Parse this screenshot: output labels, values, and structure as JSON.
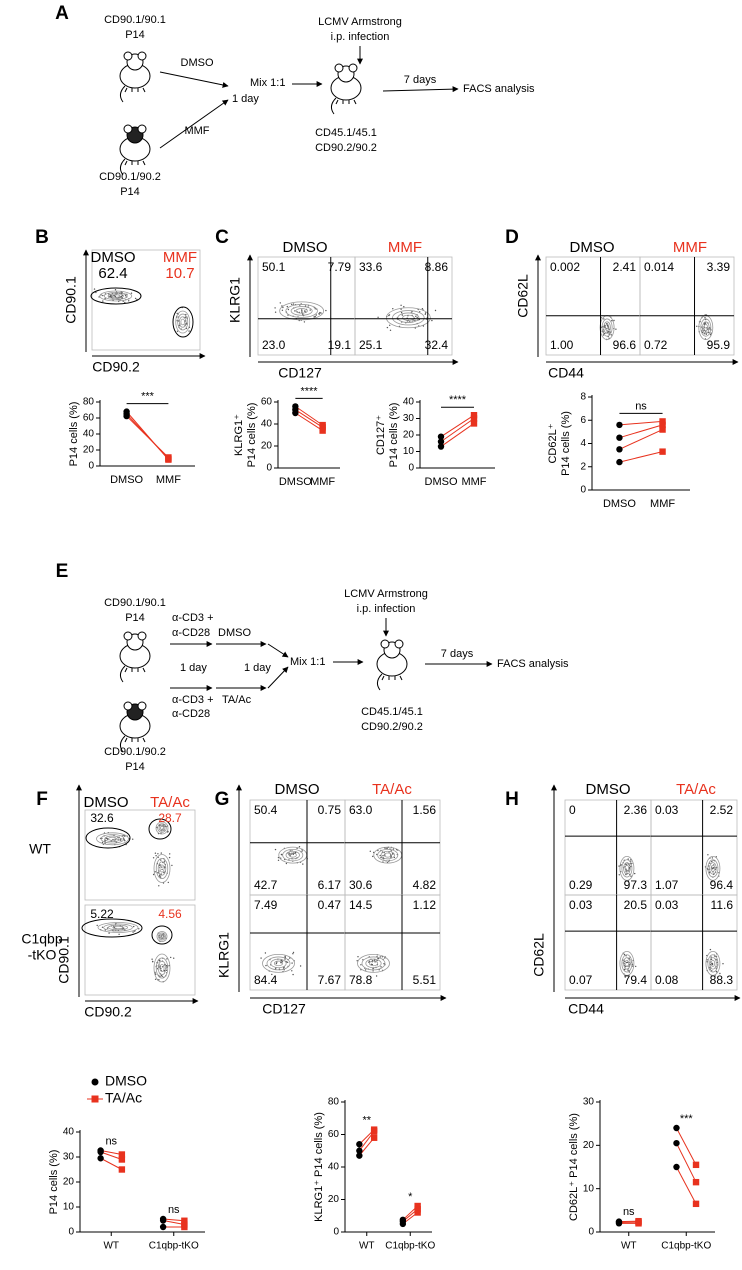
{
  "panel_letters": [
    "A",
    "B",
    "C",
    "D",
    "E",
    "F",
    "G",
    "H"
  ],
  "schematic_a": {
    "donor1": [
      "CD90.1/90.1",
      "P14"
    ],
    "donor2": [
      "CD90.1/90.2",
      "P14"
    ],
    "treat1": "DMSO",
    "treat2": "MMF",
    "interval": "1 day",
    "mix": "Mix 1:1",
    "infection": [
      "LCMV Armstrong",
      "i.p. infection"
    ],
    "recipient": [
      "CD45.1/45.1",
      "CD90.2/90.2"
    ],
    "wait": "7 days",
    "readout": "FACS analysis"
  },
  "schematic_e": {
    "donor1": [
      "CD90.1/90.1",
      "P14"
    ],
    "donor2": [
      "CD90.1/90.2",
      "P14"
    ],
    "stim1": [
      "α-CD3 +",
      "α-CD28"
    ],
    "stim2": [
      "α-CD3 +",
      "α-CD28"
    ],
    "treat1": "DMSO",
    "treat2": "TA/Ac",
    "interval1": "1 day",
    "interval2": "1 day",
    "mix": "Mix 1:1",
    "infection": [
      "LCMV Armstrong",
      "i.p. infection"
    ],
    "recipient": [
      "CD45.1/45.1",
      "CD90.2/90.2"
    ],
    "wait": "7 days",
    "readout": "FACS analysis"
  },
  "flow_b": {
    "headers": [
      "DMSO",
      "MMF"
    ],
    "gates": [
      "62.4",
      "10.7"
    ],
    "y_axis": "CD90.1",
    "x_axis": "CD90.2"
  },
  "flow_c": {
    "headers": [
      "DMSO",
      "MMF"
    ],
    "quadrants": [
      [
        "50.1",
        "7.79",
        "23.0",
        "19.1"
      ],
      [
        "33.6",
        "8.86",
        "25.1",
        "32.4"
      ]
    ],
    "y_axis": "KLRG1",
    "x_axis": "CD127"
  },
  "flow_d": {
    "headers": [
      "DMSO",
      "MMF"
    ],
    "quadrants": [
      [
        "0.002",
        "2.41",
        "1.00",
        "96.6"
      ],
      [
        "0.014",
        "3.39",
        "0.72",
        "95.9"
      ]
    ],
    "y_axis": "CD62L",
    "x_axis": "CD44"
  },
  "flow_f": {
    "headers": [
      "DMSO",
      "TA/Ac"
    ],
    "rows": [
      {
        "label": [
          "WT"
        ],
        "gates": [
          "32.6",
          "28.7"
        ]
      },
      {
        "label": [
          "C1qbp",
          "-tKO"
        ],
        "gates": [
          "5.22",
          "4.56"
        ]
      }
    ],
    "y_axis": "CD90.1",
    "x_axis": "CD90.2"
  },
  "flow_g": {
    "headers": [
      "DMSO",
      "TA/Ac"
    ],
    "rows": [
      [
        [
          "50.4",
          "0.75",
          "42.7",
          "6.17"
        ],
        [
          "63.0",
          "1.56",
          "30.6",
          "4.82"
        ]
      ],
      [
        [
          "7.49",
          "0.47",
          "84.4",
          "7.67"
        ],
        [
          "14.5",
          "1.12",
          "78.8",
          "5.51"
        ]
      ]
    ],
    "y_axis": "KLRG1",
    "x_axis": "CD127"
  },
  "flow_h": {
    "headers": [
      "DMSO",
      "TA/Ac"
    ],
    "rows": [
      [
        [
          "0",
          "2.36",
          "0.29",
          "97.3"
        ],
        [
          "0.03",
          "2.52",
          "1.07",
          "96.4"
        ]
      ],
      [
        [
          "0.03",
          "20.5",
          "0.07",
          "79.4"
        ],
        [
          "0.03",
          "11.6",
          "0.08",
          "88.3"
        ]
      ]
    ],
    "y_axis": "CD62L",
    "x_axis": "CD44"
  },
  "chart_data": [
    {
      "type": "paired",
      "ylabel": [
        "P14 cells (%)"
      ],
      "series": [
        {
          "name": "DMSO",
          "color": "#000000",
          "values": [
            62.4,
            65,
            68
          ]
        },
        {
          "name": "MMF",
          "color": "#e8321e",
          "values": [
            10.7,
            9,
            8
          ]
        }
      ],
      "ylim": [
        0,
        80
      ],
      "yticks": [
        0,
        20,
        40,
        60,
        80
      ],
      "annotation": "***"
    },
    {
      "type": "paired",
      "ylabel": [
        "KLRG1⁺",
        "P14 cells (%)"
      ],
      "series": [
        {
          "name": "DMSO",
          "color": "#000000",
          "values": [
            50,
            53,
            56
          ]
        },
        {
          "name": "MMF",
          "color": "#e8321e",
          "values": [
            34,
            37,
            39
          ]
        }
      ],
      "ylim": [
        0,
        60
      ],
      "yticks": [
        0,
        20,
        40,
        60
      ],
      "annotation": "****"
    },
    {
      "type": "paired",
      "ylabel": [
        "CD127⁺",
        "P14 cells (%)"
      ],
      "series": [
        {
          "name": "DMSO",
          "color": "#000000",
          "values": [
            13,
            16,
            19
          ]
        },
        {
          "name": "MMF",
          "color": "#e8321e",
          "values": [
            27,
            30,
            32
          ]
        }
      ],
      "ylim": [
        0,
        40
      ],
      "yticks": [
        0,
        10,
        20,
        30,
        40
      ],
      "annotation": "****"
    },
    {
      "type": "paired",
      "ylabel": [
        "CD62L⁺",
        "P14 cells (%)"
      ],
      "series": [
        {
          "name": "DMSO",
          "color": "#000000",
          "values": [
            2.4,
            3.5,
            4.5,
            5.6
          ]
        },
        {
          "name": "MMF",
          "color": "#e8321e",
          "values": [
            3.3,
            5.2,
            5.6,
            5.9
          ]
        }
      ],
      "ylim": [
        0,
        8
      ],
      "yticks": [
        0,
        2,
        4,
        6,
        8
      ],
      "annotation": "ns"
    },
    {
      "type": "grouped-paired",
      "ylabel": [
        "P14 cells (%)"
      ],
      "categories": [
        "WT",
        "C1qbp-tKO"
      ],
      "series": [
        {
          "name": "DMSO",
          "color": "#000000",
          "values": [
            [
              29.5,
              32,
              32.6
            ],
            [
              2,
              4.6,
              5.2
            ]
          ]
        },
        {
          "name": "TA/Ac",
          "color": "#e8321e",
          "values": [
            [
              25,
              29,
              31
            ],
            [
              2,
              3,
              4.5
            ]
          ]
        }
      ],
      "ylim": [
        0,
        40
      ],
      "yticks": [
        0,
        10,
        20,
        30,
        40
      ],
      "annotations": [
        "ns",
        "ns"
      ],
      "legend": true
    },
    {
      "type": "grouped-paired",
      "ylabel": [
        "KLRG1⁺ P14 cells (%)"
      ],
      "categories": [
        "WT",
        "C1qbp-tKO"
      ],
      "series": [
        {
          "name": "DMSO",
          "color": "#000000",
          "values": [
            [
              47,
              50,
              54
            ],
            [
              5,
              6.5,
              7.5
            ]
          ]
        },
        {
          "name": "TA/Ac",
          "color": "#e8321e",
          "values": [
            [
              58,
              62,
              63
            ],
            [
              12,
              14,
              16
            ]
          ]
        }
      ],
      "ylim": [
        0,
        80
      ],
      "yticks": [
        0,
        20,
        40,
        60,
        80
      ],
      "annotations": [
        "**",
        "*"
      ],
      "legend": false
    },
    {
      "type": "grouped-paired",
      "ylabel": [
        "CD62L⁺ P14 cells (%)"
      ],
      "categories": [
        "WT",
        "C1qbp-tKO"
      ],
      "series": [
        {
          "name": "DMSO",
          "color": "#000000",
          "values": [
            [
              2,
              2.2,
              2.4
            ],
            [
              15,
              20.5,
              24
            ]
          ]
        },
        {
          "name": "TA/Ac",
          "color": "#e8321e",
          "values": [
            [
              2,
              2.3,
              2.5
            ],
            [
              6.5,
              11.5,
              15.5
            ]
          ]
        }
      ],
      "ylim": [
        0,
        30
      ],
      "yticks": [
        0,
        10,
        20,
        30
      ],
      "annotations": [
        "ns",
        "***"
      ],
      "legend": false
    }
  ]
}
